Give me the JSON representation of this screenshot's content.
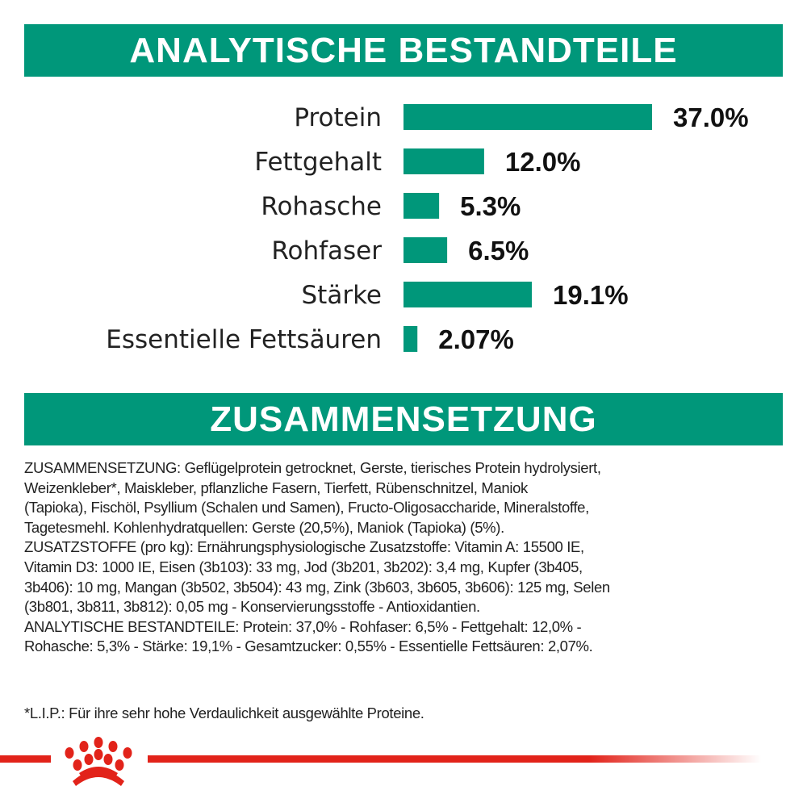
{
  "header1": "ANALYTISCHE BESTANDTEILE",
  "header2": "ZUSAMMENSETZUNG",
  "colors": {
    "accent": "#00977a",
    "brand_red": "#e2231a"
  },
  "chart_data": {
    "type": "bar",
    "orientation": "horizontal",
    "categories": [
      "Protein",
      "Fettgehalt",
      "Rohasche",
      "Rohfaser",
      "Stärke",
      "Essentielle Fettsäuren"
    ],
    "values": [
      37.0,
      12.0,
      5.3,
      6.5,
      19.1,
      2.07
    ],
    "value_labels": [
      "37.0%",
      "12.0%",
      "5.3%",
      "6.5%",
      "19.1%",
      "2.07%"
    ],
    "unit": "%",
    "grid": false
  },
  "composition_lines": [
    "ZUSAMMENSETZUNG: Geflügelprotein getrocknet, Gerste, tierisches Protein hydrolysiert,",
    "Weizenkleber*, Maiskleber, pflanzliche Fasern, Tierfett, Rübenschnitzel, Maniok",
    "(Tapioka), Fischöl, Psyllium (Schalen und Samen), Fructo-Oligosaccharide, Mineralstoffe,",
    "Tagetesmehl. Kohlenhydratquellen: Gerste (20,5%), Maniok (Tapioka) (5%).",
    "ZUSATZSTOFFE (pro kg): Ernährungsphysiologische Zusatzstoffe: Vitamin A: 15500 IE,",
    "Vitamin D3: 1000 IE, Eisen (3b103): 33 mg, Jod (3b201, 3b202): 3,4 mg, Kupfer (3b405,",
    "3b406): 10 mg, Mangan (3b502, 3b504): 43 mg, Zink (3b603, 3b605, 3b606): 125 mg, Selen",
    "(3b801, 3b811, 3b812): 0,05 mg - Konservierungsstoffe - Antioxidantien.",
    "ANALYTISCHE BESTANDTEILE: Protein: 37,0% - Rohfaser: 6,5% - Fettgehalt: 12,0% -",
    "Rohasche: 5,3% - Stärke: 19,1% - Gesamtzucker: 0,55% - Essentielle Fettsäuren: 2,07%."
  ],
  "footnote": "*L.I.P.: Für ihre sehr hohe Verdaulichkeit ausgewählte Proteine.",
  "logo": "royal-canin-crown-icon"
}
